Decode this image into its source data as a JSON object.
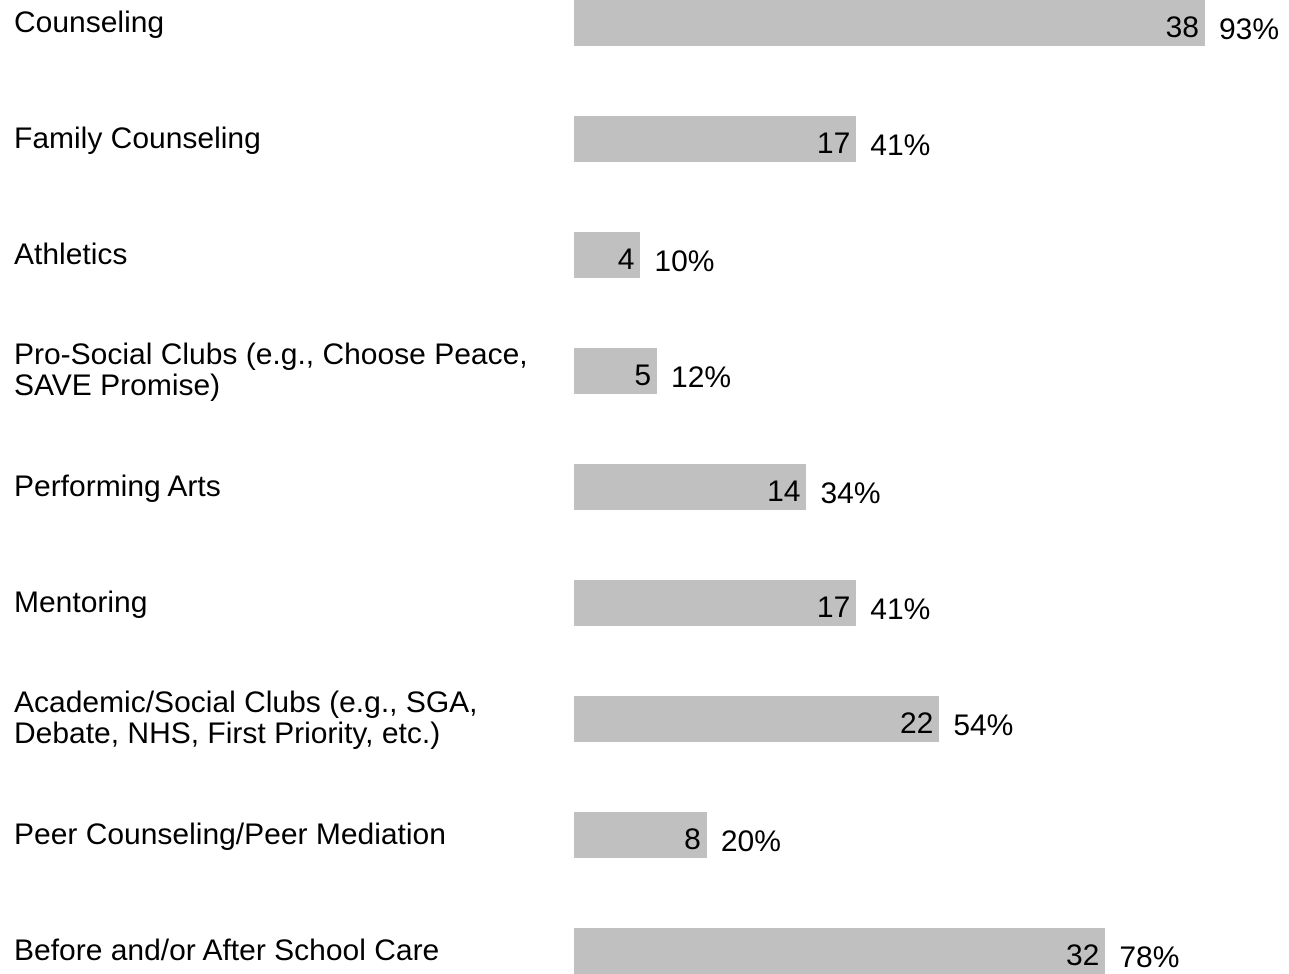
{
  "chart_data": {
    "type": "bar",
    "orientation": "horizontal",
    "categories": [
      "Counseling",
      "Family Counseling",
      "Athletics",
      "Pro-Social Clubs (e.g., Choose Peace, SAVE Promise)",
      "Performing Arts",
      "Mentoring",
      "Academic/Social Clubs (e.g., SGA, Debate, NHS, First Priority, etc.)",
      "Peer Counseling/Peer Mediation",
      "Before and/or After School Care"
    ],
    "values": [
      38,
      17,
      4,
      5,
      14,
      17,
      22,
      8,
      32
    ],
    "percent_labels": [
      "93%",
      "41%",
      "10%",
      "12%",
      "34%",
      "41%",
      "54%",
      "20%",
      "78%"
    ],
    "bar_color": "#c0c0c0",
    "xlim": [
      0,
      41
    ],
    "grid": false,
    "legend": "none"
  }
}
